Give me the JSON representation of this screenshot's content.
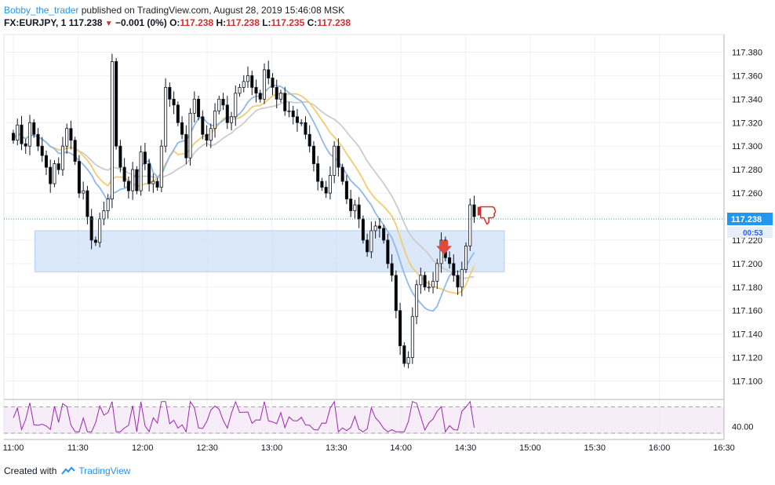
{
  "header": {
    "author": "Bobby_the_trader",
    "published": "published on TradingView.com, August 28, 2019 15:46:08 MSK",
    "symbol": "FX:EURJPY, 1",
    "last": "117.238",
    "change": "−0.001 (0%)",
    "o_label": "O:",
    "o_val": "117.238",
    "h_label": "H:",
    "h_val": "117.238",
    "l_label": "L:",
    "l_val": "117.235",
    "c_label": "C:",
    "c_val": "117.238"
  },
  "footer": {
    "created": "Created with",
    "brand": "TradingView"
  },
  "colors": {
    "up": "#ffffff",
    "down": "#000000",
    "wick": "#131722",
    "rsi": "#9c27b0",
    "zone": "#cfe0f8",
    "ma_fast": "#90b8e8",
    "ma_mid": "#f2cc70",
    "ma_slow": "#cccccc",
    "price_label": "#2196f3",
    "arrow": "#e04a3a"
  },
  "chart_data": [
    {
      "type": "candlestick",
      "price_axis": {
        "ylim": [
          117.085,
          117.395
        ],
        "ticks": [
          "117.380",
          "117.360",
          "117.340",
          "117.320",
          "117.300",
          "117.280",
          "117.260",
          "117.240",
          "117.220",
          "117.200",
          "117.180",
          "117.160",
          "117.140",
          "117.120",
          "117.100"
        ]
      },
      "time_axis": {
        "labels": [
          "11:00",
          "11:30",
          "12:00",
          "12:30",
          "13:00",
          "13:30",
          "14:00",
          "14:30",
          "15:00",
          "15:30",
          "16:00",
          "16:30"
        ],
        "xlim_minutes": [
          0,
          330
        ]
      },
      "current_price": "117.238",
      "countdown": "00:53",
      "zone": {
        "x_minutes": [
          10,
          228
        ],
        "y": [
          117.193,
          117.228
        ]
      },
      "sell_arrow": {
        "x_minutes": 200,
        "y": 117.213
      },
      "thumb_down": {
        "x_minutes": 217,
        "y": 117.243
      },
      "close": [
        117.305,
        117.318,
        117.302,
        117.3,
        117.32,
        117.31,
        117.3,
        117.292,
        117.282,
        117.268,
        117.285,
        117.28,
        117.3,
        117.315,
        117.305,
        117.287,
        117.26,
        117.262,
        117.24,
        117.22,
        117.218,
        117.238,
        117.245,
        117.255,
        117.372,
        117.3,
        117.282,
        117.27,
        117.262,
        117.28,
        117.262,
        117.295,
        117.285,
        117.268,
        117.27,
        117.265,
        117.3,
        117.35,
        117.34,
        117.335,
        117.32,
        117.31,
        117.29,
        117.328,
        117.34,
        117.325,
        117.31,
        117.305,
        117.315,
        117.33,
        117.34,
        117.335,
        117.32,
        117.325,
        117.345,
        117.35,
        117.355,
        117.36,
        117.35,
        117.345,
        117.34,
        117.365,
        117.358,
        117.35,
        117.34,
        117.345,
        117.33,
        117.33,
        117.325,
        117.32,
        117.32,
        117.31,
        117.3,
        117.285,
        117.27,
        117.265,
        117.26,
        117.275,
        117.3,
        117.282,
        117.27,
        117.255,
        117.245,
        117.25,
        117.238,
        117.22,
        117.21,
        117.228,
        117.232,
        117.23,
        117.22,
        117.2,
        117.19,
        117.16,
        117.13,
        117.115,
        117.12,
        117.155,
        117.182,
        117.19,
        117.18,
        117.18,
        117.185,
        117.2,
        117.22,
        117.205,
        117.2,
        117.19,
        117.18,
        117.195,
        117.215,
        117.25,
        117.24
      ]
    },
    {
      "type": "line",
      "name": "RSI",
      "ticks": [
        "40.00"
      ],
      "ylim": [
        30,
        80
      ],
      "levels": [
        70,
        30
      ]
    }
  ]
}
